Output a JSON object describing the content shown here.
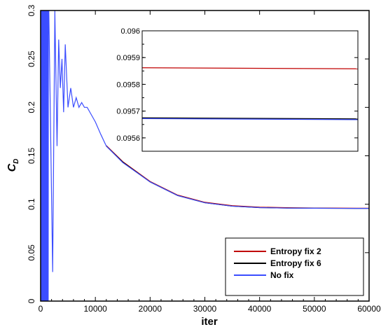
{
  "chart_data": {
    "type": "line",
    "xlabel": "iter",
    "ylabel_main": "C",
    "ylabel_sub": "D",
    "xlim": [
      0,
      60000
    ],
    "ylim": [
      0,
      0.3
    ],
    "xticks": [
      "0",
      "10000",
      "20000",
      "30000",
      "40000",
      "50000",
      "60000"
    ],
    "yticks": [
      "0",
      "0.05",
      "0.1",
      "0.15",
      "0.2",
      "0.25",
      "0.3"
    ],
    "grid": false,
    "legend_position": "bottom-right",
    "series": [
      {
        "name": "Entropy fix 2",
        "color": "#c00000",
        "x": [
          12000,
          15000,
          20000,
          25000,
          30000,
          35000,
          40000,
          45000,
          50000,
          55000,
          60000
        ],
        "y": [
          0.1605,
          0.144,
          0.1235,
          0.1095,
          0.102,
          0.0985,
          0.097,
          0.0964,
          0.09605,
          0.09595,
          0.09586
        ]
      },
      {
        "name": "Entropy fix 6",
        "color": "#000000",
        "x": [
          12000,
          15000,
          20000,
          25000,
          30000,
          35000,
          40000,
          45000,
          50000,
          55000,
          60000
        ],
        "y": [
          0.16,
          0.1435,
          0.123,
          0.109,
          0.1015,
          0.098,
          0.0965,
          0.096,
          0.09585,
          0.09575,
          0.09567
        ]
      },
      {
        "name": "No fix",
        "color": "#3b4dff",
        "x": [
          0,
          400,
          900,
          1500,
          2200,
          2600,
          3000,
          3300,
          3600,
          3900,
          4200,
          4500,
          5000,
          5500,
          6000,
          6500,
          7000,
          7500,
          8000,
          8500,
          9000,
          10000,
          11000,
          12000,
          15000,
          20000,
          25000,
          30000,
          35000,
          40000,
          45000,
          50000,
          55000,
          60000
        ],
        "y": [
          0.03,
          0.3,
          0.15,
          0.3,
          0.03,
          0.3,
          0.16,
          0.27,
          0.22,
          0.25,
          0.195,
          0.265,
          0.2,
          0.22,
          0.2,
          0.21,
          0.2,
          0.205,
          0.2,
          0.2,
          0.195,
          0.185,
          0.172,
          0.16,
          0.143,
          0.123,
          0.109,
          0.1015,
          0.098,
          0.0965,
          0.096,
          0.09585,
          0.09575,
          0.09567
        ]
      }
    ],
    "inset": {
      "xlim": [
        30000,
        60000
      ],
      "ylim": [
        0.09555,
        0.096
      ],
      "yticks": [
        "0.0956",
        "0.0957",
        "0.0958",
        "0.0959",
        "0.096"
      ],
      "series": [
        {
          "name": "Entropy fix 2",
          "color": "#c00000",
          "x": [
            30000,
            60000
          ],
          "y": [
            0.095862,
            0.095858
          ]
        },
        {
          "name": "Entropy fix 6",
          "color": "#000000",
          "x": [
            30000,
            60000
          ],
          "y": [
            0.095674,
            0.09567
          ]
        },
        {
          "name": "No fix",
          "color": "#3b4dff",
          "x": [
            30000,
            60000
          ],
          "y": [
            0.095672,
            0.095668
          ]
        }
      ]
    }
  }
}
